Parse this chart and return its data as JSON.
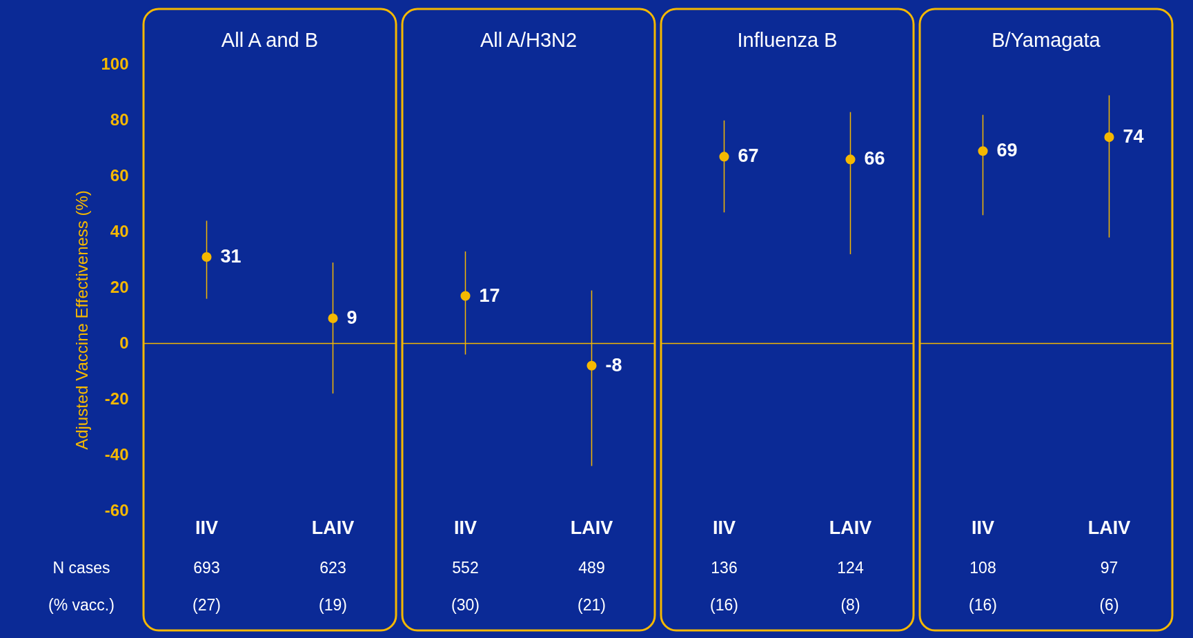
{
  "chart_data": [
    {
      "type": "scatter",
      "title": "All A and B",
      "ylabel": "Adjusted Vaccine Effectiveness (%)",
      "categories": [
        "IIV",
        "LAIV"
      ],
      "values": [
        31,
        9
      ],
      "errors": [
        [
          16,
          44
        ],
        [
          -18,
          29
        ]
      ],
      "color": "#f5b800",
      "marker": "circle",
      "data_labels": true,
      "ylim": [
        -103,
        120
      ],
      "yticks": [
        -60,
        -40,
        -20,
        0,
        20,
        40,
        60,
        80,
        100
      ],
      "grid": false,
      "ref_lines": [
        {
          "axis": "y",
          "value": 0,
          "color": "#f5b800"
        }
      ],
      "annotations": [
        "N cases",
        "693",
        "623",
        "(% vacc.)",
        "(27)",
        "(19)"
      ]
    },
    {
      "type": "scatter",
      "title": "All A/H3N2",
      "categories": [
        "IIV",
        "LAIV"
      ],
      "values": [
        17,
        -8
      ],
      "errors": [
        [
          -4,
          33
        ],
        [
          -44,
          19
        ]
      ],
      "color": "#f5b800",
      "marker": "circle",
      "data_labels": true,
      "ylim": [
        -103,
        120
      ],
      "yticks": [
        -60,
        -40,
        -20,
        0,
        20,
        40,
        60,
        80,
        100
      ],
      "tick_labels": "x",
      "grid": false,
      "ref_lines": [
        {
          "axis": "y",
          "value": 0,
          "color": "#f5b800"
        }
      ],
      "annotations": [
        "552",
        "489",
        "(30)",
        "(21)"
      ]
    },
    {
      "type": "scatter",
      "title": "Influenza B",
      "categories": [
        "IIV",
        "LAIV"
      ],
      "values": [
        67,
        66
      ],
      "errors": [
        [
          47,
          80
        ],
        [
          32,
          83
        ]
      ],
      "color": "#f5b800",
      "marker": "circle",
      "data_labels": true,
      "ylim": [
        -103,
        120
      ],
      "yticks": [
        -60,
        -40,
        -20,
        0,
        20,
        40,
        60,
        80,
        100
      ],
      "tick_labels": "x",
      "grid": false,
      "ref_lines": [
        {
          "axis": "y",
          "value": 0,
          "color": "#f5b800"
        }
      ],
      "annotations": [
        "136",
        "124",
        "(16)",
        "(8)"
      ]
    },
    {
      "type": "scatter",
      "title": "B/Yamagata",
      "categories": [
        "IIV",
        "LAIV"
      ],
      "values": [
        69,
        74
      ],
      "errors": [
        [
          46,
          82
        ],
        [
          38,
          89
        ]
      ],
      "color": "#f5b800",
      "marker": "circle",
      "data_labels": true,
      "ylim": [
        -103,
        120
      ],
      "yticks": [
        -60,
        -40,
        -20,
        0,
        20,
        40,
        60,
        80,
        100
      ],
      "tick_labels": "x",
      "grid": false,
      "ref_lines": [
        {
          "axis": "y",
          "value": 0,
          "color": "#f5b800"
        }
      ],
      "annotations": [
        "108",
        "97",
        "(16)",
        "(6)"
      ]
    }
  ]
}
